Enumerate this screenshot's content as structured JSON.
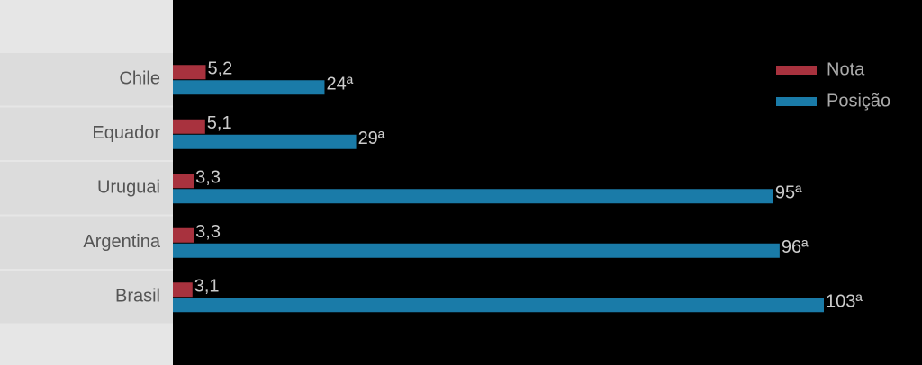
{
  "chart_data": {
    "type": "bar",
    "orientation": "horizontal",
    "categories": [
      "Chile",
      "Equador",
      "Uruguai",
      "Argentina",
      "Brasil"
    ],
    "series": [
      {
        "name": "Nota",
        "color": "#a8323e",
        "values": [
          5.2,
          5.1,
          3.3,
          3.3,
          3.1
        ],
        "value_labels": [
          "5,2",
          "5,1",
          "3,3",
          "3,3",
          "3,1"
        ]
      },
      {
        "name": "Posição",
        "color": "#1a7ba8",
        "values": [
          24,
          29,
          95,
          96,
          103
        ],
        "value_labels": [
          "24ª",
          "29ª",
          "95ª",
          "96ª",
          "103ª"
        ]
      }
    ],
    "legend": "top-right"
  }
}
